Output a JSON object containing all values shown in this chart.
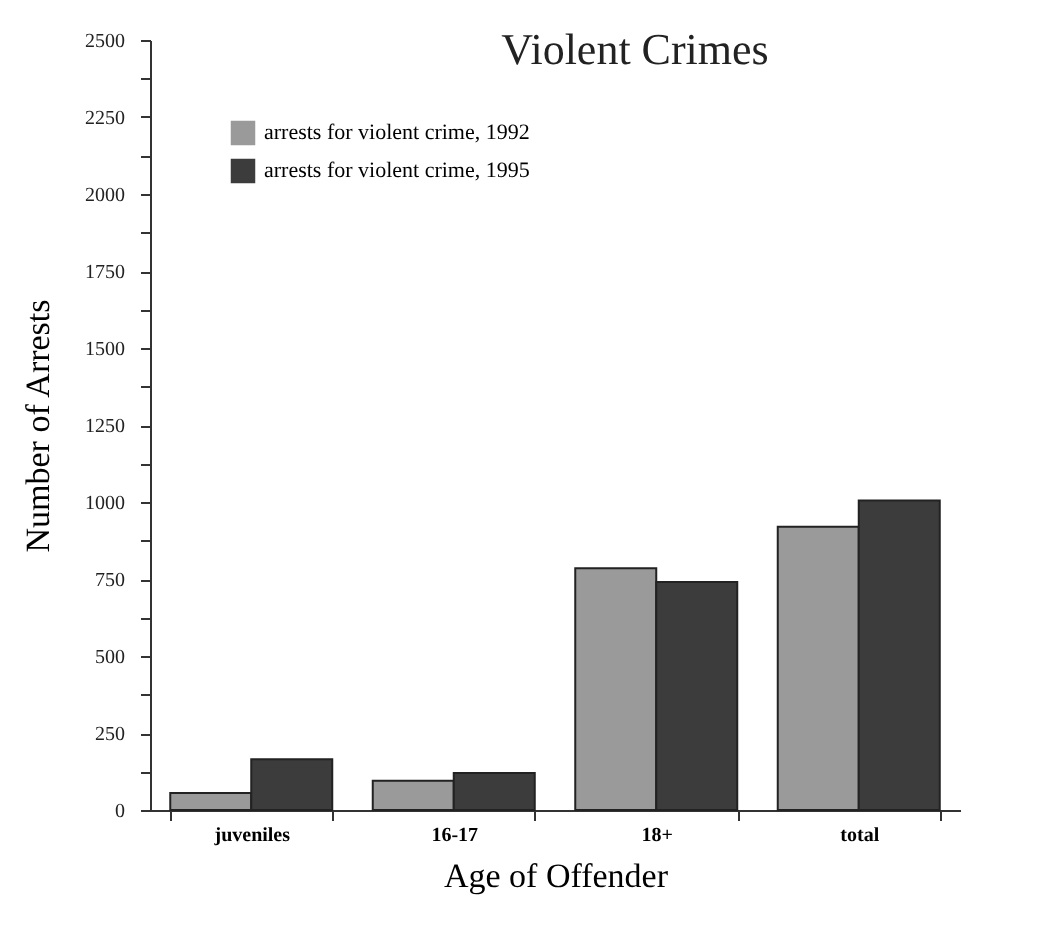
{
  "chart_data": {
    "type": "bar",
    "title": "Violent Crimes",
    "xlabel": "Age of Offender",
    "ylabel": "Number of Arrests",
    "categories": [
      "juveniles",
      "16-17",
      "18+",
      "total"
    ],
    "series": [
      {
        "name": "arrests for violent crime, 1992",
        "color": "#9a9a9a",
        "values": [
          55,
          95,
          785,
          920
        ]
      },
      {
        "name": "arrests for violent crime, 1995",
        "color": "#3c3c3c",
        "values": [
          165,
          120,
          740,
          1005
        ]
      }
    ],
    "ylim": [
      0,
      2500
    ],
    "yticks": [
      0,
      {
        "value": 125,
        "label": null
      },
      250,
      {
        "value": 375,
        "label": null
      },
      500,
      {
        "value": 625,
        "label": null
      },
      750,
      {
        "value": 875,
        "label": null
      },
      1000,
      {
        "value": 1125,
        "label": null
      },
      1250,
      {
        "value": 1375,
        "label": null
      },
      1500,
      {
        "value": 1625,
        "label": null
      },
      1750,
      {
        "value": 1875,
        "label": null
      },
      2000,
      {
        "value": 2125,
        "label": null
      },
      2250,
      {
        "value": 2375,
        "label": null
      },
      2500
    ],
    "grid": false,
    "legend": "top left"
  }
}
